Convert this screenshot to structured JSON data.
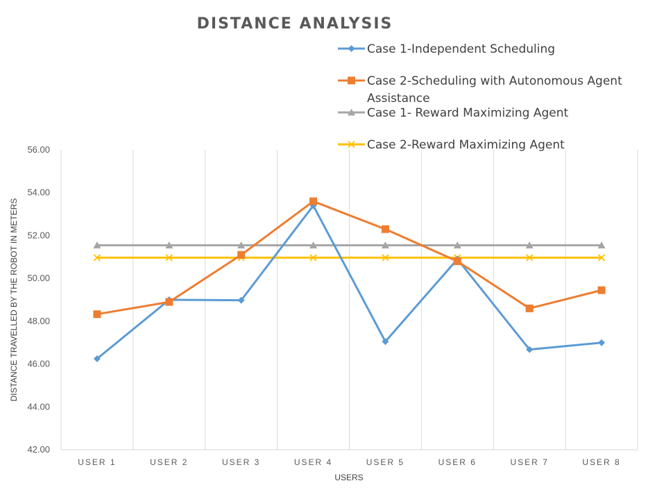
{
  "chart_data": {
    "type": "line",
    "title": "DISTANCE  ANALYSIS",
    "xlabel": "USERS",
    "ylabel": "DISTANCE TRAVELLED BY THE ROBOT IN METERS",
    "categories": [
      "USER 1",
      "USER 2",
      "USER 3",
      "USER 4",
      "USER 5",
      "USER 6",
      "USER 7",
      "USER 8"
    ],
    "ylim": [
      42,
      56
    ],
    "yticks": [
      "42.00",
      "44.00",
      "46.00",
      "48.00",
      "50.00",
      "52.00",
      "54.00",
      "56.00"
    ],
    "grid": "vertical",
    "legend_position": "top-right",
    "series": [
      {
        "name": "Case 1-Independent Scheduling",
        "name_lines": [
          "Case 1-Independent Scheduling"
        ],
        "color": "#5B9BD5",
        "marker": "diamond",
        "values": [
          46.25,
          49.0,
          48.98,
          53.4,
          47.05,
          50.9,
          46.68,
          47.0
        ]
      },
      {
        "name": "Case 2-Scheduling with Autonomous Agent Assistance",
        "name_lines": [
          "Case 2-Scheduling with Autonomous Agent",
          "Assistance"
        ],
        "color": "#ED7D31",
        "marker": "square",
        "values": [
          48.33,
          48.9,
          51.1,
          53.6,
          52.3,
          50.8,
          48.6,
          49.45
        ]
      },
      {
        "name": "Case 1- Reward Maximizing Agent",
        "name_lines": [
          "Case 1- Reward Maximizing Agent"
        ],
        "color": "#A5A5A5",
        "marker": "triangle",
        "values": [
          51.55,
          51.55,
          51.55,
          51.55,
          51.55,
          51.55,
          51.55,
          51.55
        ]
      },
      {
        "name": "Case 2-Reward Maximizing Agent",
        "name_lines": [
          "Case 2-Reward Maximizing Agent"
        ],
        "color": "#FFC000",
        "marker": "x",
        "values": [
          50.97,
          50.97,
          50.97,
          50.97,
          50.97,
          50.97,
          50.97,
          50.97
        ]
      }
    ]
  }
}
